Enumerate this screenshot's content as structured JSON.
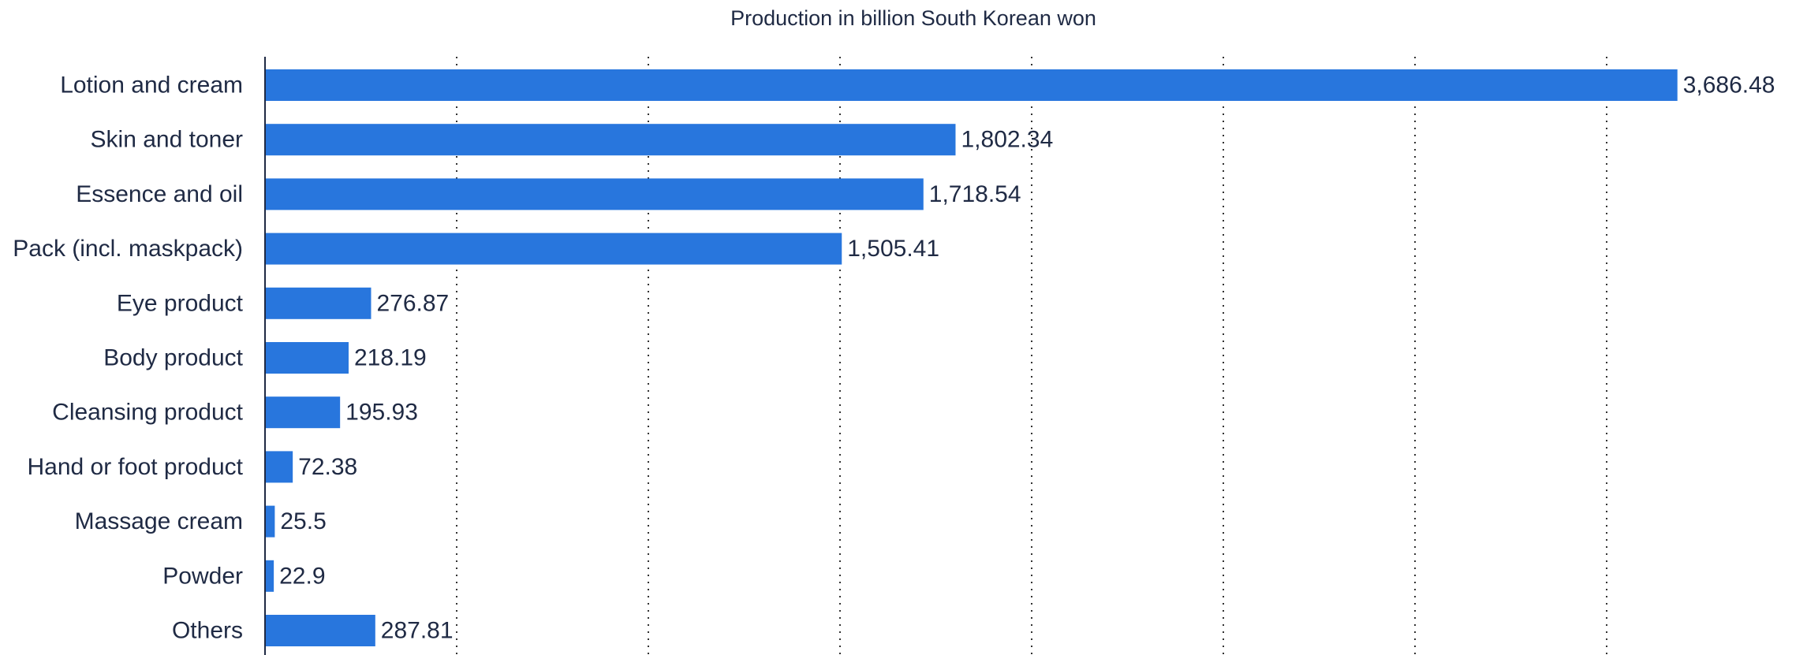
{
  "chart_data": {
    "type": "bar",
    "orientation": "horizontal",
    "title": "Production in billion South Korean won",
    "xlabel": "",
    "ylabel": "",
    "categories": [
      "Lotion and cream",
      "Skin and toner",
      "Essence and oil",
      "Pack (incl. maskpack)",
      "Eye product",
      "Body product",
      "Cleansing product",
      "Hand or foot product",
      "Massage cream",
      "Powder",
      "Others"
    ],
    "values": [
      3686.48,
      1802.34,
      1718.54,
      1505.41,
      276.87,
      218.19,
      195.93,
      72.38,
      25.5,
      22.9,
      287.81
    ],
    "value_labels": [
      "3,686.48",
      "1,802.34",
      "1,718.54",
      "1,505.41",
      "276.87",
      "218.19",
      "195.93",
      "72.38",
      "25.5",
      "22.9",
      "287.81"
    ],
    "xlim": [
      0,
      4000
    ],
    "grid": true,
    "grid_style": "dotted vertical",
    "bar_color": "#2876dd",
    "text_color": "#1f2a44"
  }
}
